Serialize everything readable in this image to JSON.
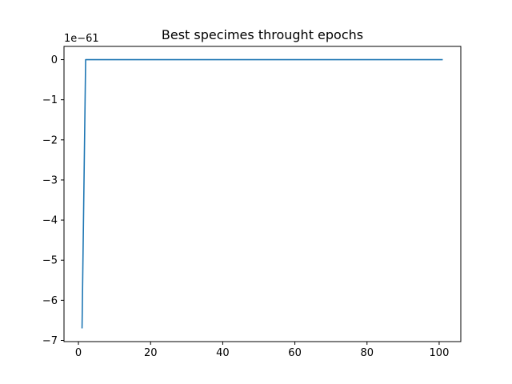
{
  "chart_data": {
    "type": "line",
    "title": "Best specimes throught epochs",
    "xlabel": "",
    "ylabel": "",
    "y_offset_label": "1e−61",
    "xlim": [
      -4.0,
      106.0
    ],
    "ylim": [
      -7.03,
      0.33
    ],
    "x_ticks": [
      0,
      20,
      40,
      60,
      80,
      100
    ],
    "x_tick_labels": [
      "0",
      "20",
      "40",
      "60",
      "80",
      "100"
    ],
    "y_ticks": [
      0,
      -1,
      -2,
      -3,
      -4,
      -5,
      -6,
      -7
    ],
    "y_tick_labels": [
      "0",
      "−1",
      "−2",
      "−3",
      "−4",
      "−5",
      "−6",
      "−7"
    ],
    "grid": false,
    "legend": "none",
    "series": [
      {
        "color": "#1f77b4",
        "x": [
          1,
          2,
          3,
          4,
          5,
          6,
          7,
          8,
          9,
          10,
          11,
          12,
          13,
          14,
          15,
          16,
          17,
          18,
          19,
          20,
          21,
          22,
          23,
          24,
          25,
          26,
          27,
          28,
          29,
          30,
          31,
          32,
          33,
          34,
          35,
          36,
          37,
          38,
          39,
          40,
          41,
          42,
          43,
          44,
          45,
          46,
          47,
          48,
          49,
          50,
          51,
          52,
          53,
          54,
          55,
          56,
          57,
          58,
          59,
          60,
          61,
          62,
          63,
          64,
          65,
          66,
          67,
          68,
          69,
          70,
          71,
          72,
          73,
          74,
          75,
          76,
          77,
          78,
          79,
          80,
          81,
          82,
          83,
          84,
          85,
          86,
          87,
          88,
          89,
          90,
          91,
          92,
          93,
          94,
          95,
          96,
          97,
          98,
          99,
          100,
          101
        ],
        "y": [
          -6.7,
          0,
          0,
          0,
          0,
          0,
          0,
          0,
          0,
          0,
          0,
          0,
          0,
          0,
          0,
          0,
          0,
          0,
          0,
          0,
          0,
          0,
          0,
          0,
          0,
          0,
          0,
          0,
          0,
          0,
          0,
          0,
          0,
          0,
          0,
          0,
          0,
          0,
          0,
          0,
          0,
          0,
          0,
          0,
          0,
          0,
          0,
          0,
          0,
          0,
          0,
          0,
          0,
          0,
          0,
          0,
          0,
          0,
          0,
          0,
          0,
          0,
          0,
          0,
          0,
          0,
          0,
          0,
          0,
          0,
          0,
          0,
          0,
          0,
          0,
          0,
          0,
          0,
          0,
          0,
          0,
          0,
          0,
          0,
          0,
          0,
          0,
          0,
          0,
          0,
          0,
          0,
          0,
          0,
          0,
          0,
          0,
          0,
          0,
          0,
          0
        ]
      }
    ]
  }
}
